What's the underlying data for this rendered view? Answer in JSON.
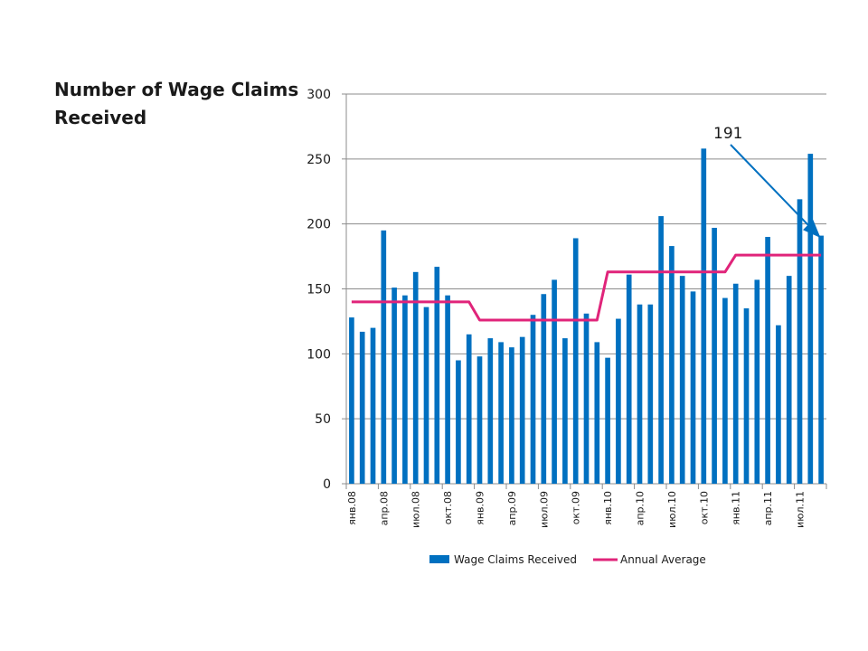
{
  "slide": {
    "title": "Number of Wage Claims Received"
  },
  "chart_data": {
    "type": "bar",
    "title": "",
    "xlabel": "",
    "ylabel": "",
    "ylim": [
      0,
      300
    ],
    "yticks": [
      0,
      50,
      100,
      150,
      200,
      250,
      300
    ],
    "grid": true,
    "legend_position": "bottom",
    "categories": [
      "янв.08",
      "фев.08",
      "мар.08",
      "апр.08",
      "май.08",
      "июн.08",
      "июл.08",
      "авг.08",
      "сен.08",
      "окт.08",
      "ноя.08",
      "дек.08",
      "янв.09",
      "фев.09",
      "мар.09",
      "апр.09",
      "май.09",
      "июн.09",
      "июл.09",
      "авг.09",
      "сен.09",
      "окт.09",
      "ноя.09",
      "дек.09",
      "янв.10",
      "фев.10",
      "мар.10",
      "апр.10",
      "май.10",
      "июн.10",
      "июл.10",
      "авг.10",
      "сен.10",
      "окт.10",
      "ноя.10",
      "дек.10",
      "янв.11",
      "фев.11",
      "мар.11",
      "апр.11",
      "май.11",
      "июн.11",
      "июл.11",
      "авг.11",
      "сен.11"
    ],
    "x_tick_labels": [
      "янв.08",
      "апр.08",
      "июл.08",
      "окт.08",
      "янв.09",
      "апр.09",
      "июл.09",
      "окт.09",
      "янв.10",
      "апр.10",
      "июл.10",
      "окт.10",
      "янв.11",
      "апр.11",
      "июл.11"
    ],
    "series": [
      {
        "name": "Wage Claims Received",
        "type": "bar",
        "color": "#0070c0",
        "values": [
          128,
          117,
          120,
          195,
          151,
          145,
          163,
          136,
          167,
          145,
          95,
          115,
          98,
          112,
          109,
          105,
          113,
          130,
          146,
          157,
          112,
          189,
          131,
          109,
          97,
          127,
          161,
          138,
          138,
          206,
          183,
          160,
          148,
          258,
          197,
          143,
          154,
          135,
          157,
          190,
          122,
          160,
          219,
          254,
          191
        ]
      },
      {
        "name": "Annual Average",
        "type": "line",
        "color": "#e0247a",
        "values": [
          140,
          140,
          140,
          140,
          140,
          140,
          140,
          140,
          140,
          140,
          140,
          140,
          126,
          126,
          126,
          126,
          126,
          126,
          126,
          126,
          126,
          126,
          126,
          126,
          163,
          163,
          163,
          163,
          163,
          163,
          163,
          163,
          163,
          163,
          163,
          163,
          176,
          176,
          176,
          176,
          176,
          176,
          176,
          176,
          176
        ]
      }
    ],
    "annotations": [
      {
        "text": "191",
        "target_category": "сен.11",
        "target_value": 191,
        "arrow_color": "#0070c0"
      }
    ]
  }
}
